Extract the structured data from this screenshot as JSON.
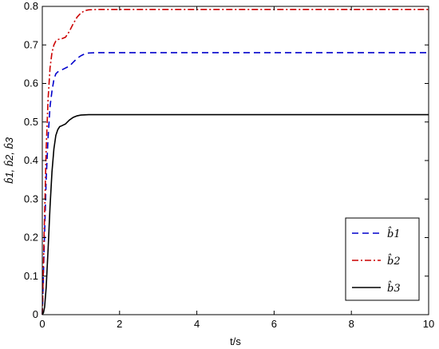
{
  "chart_data": {
    "type": "line",
    "title": "",
    "xlabel": "t/s",
    "ylabel": "b̂1, b̂2, b̂3",
    "xlim": [
      0,
      10
    ],
    "ylim": [
      0,
      0.8
    ],
    "xticks": [
      0,
      2,
      4,
      6,
      8,
      10
    ],
    "yticks": [
      0,
      0.1,
      0.2,
      0.3,
      0.4,
      0.5,
      0.6,
      0.7,
      0.8
    ],
    "grid": false,
    "legend_position": "bottom-right",
    "series": [
      {
        "name": "b̂1",
        "color": "#0000cc",
        "linestyle": "dashed",
        "x": [
          0,
          0.05,
          0.1,
          0.15,
          0.2,
          0.25,
          0.3,
          0.35,
          0.4,
          0.5,
          0.6,
          0.7,
          0.8,
          0.9,
          1.0,
          1.1,
          1.2,
          1.4,
          2,
          4,
          6,
          8,
          10
        ],
        "y": [
          0,
          0.18,
          0.35,
          0.46,
          0.54,
          0.58,
          0.61,
          0.625,
          0.63,
          0.635,
          0.64,
          0.645,
          0.655,
          0.665,
          0.672,
          0.677,
          0.679,
          0.68,
          0.68,
          0.68,
          0.68,
          0.68,
          0.68
        ]
      },
      {
        "name": "b̂2",
        "color": "#cc0000",
        "linestyle": "dashdot",
        "x": [
          0,
          0.05,
          0.1,
          0.15,
          0.2,
          0.25,
          0.3,
          0.35,
          0.4,
          0.5,
          0.6,
          0.7,
          0.8,
          0.9,
          1.0,
          1.1,
          1.2,
          1.4,
          2,
          4,
          6,
          8,
          10
        ],
        "y": [
          0,
          0.22,
          0.43,
          0.56,
          0.64,
          0.68,
          0.7,
          0.71,
          0.714,
          0.716,
          0.72,
          0.735,
          0.755,
          0.772,
          0.783,
          0.789,
          0.791,
          0.792,
          0.792,
          0.792,
          0.792,
          0.792,
          0.792
        ]
      },
      {
        "name": "b̂3",
        "color": "#000000",
        "linestyle": "solid",
        "x": [
          0,
          0.03,
          0.06,
          0.1,
          0.15,
          0.2,
          0.25,
          0.3,
          0.35,
          0.4,
          0.45,
          0.5,
          0.6,
          0.7,
          0.8,
          0.9,
          1.0,
          1.2,
          2,
          4,
          6,
          8,
          10
        ],
        "y": [
          0,
          0.005,
          0.02,
          0.07,
          0.17,
          0.28,
          0.37,
          0.43,
          0.465,
          0.48,
          0.488,
          0.49,
          0.495,
          0.505,
          0.512,
          0.516,
          0.518,
          0.519,
          0.519,
          0.519,
          0.519,
          0.519,
          0.519
        ]
      }
    ]
  },
  "legend": {
    "items": [
      "b̂1",
      "b̂2",
      "b̂3"
    ]
  }
}
